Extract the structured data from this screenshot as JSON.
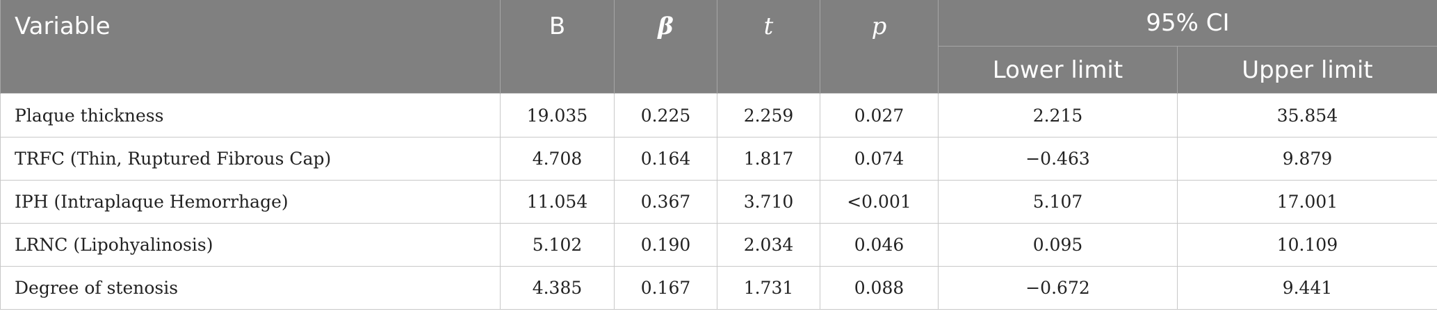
{
  "header": {
    "variable": "Variable",
    "b": "B",
    "beta": "β",
    "t": "t",
    "p": "p",
    "ci": "95% CI",
    "lower": "Lower limit",
    "upper": "Upper limit"
  },
  "rows": [
    {
      "variable": "Plaque thickness",
      "b": "19.035",
      "beta": "0.225",
      "t": "2.259",
      "p": "0.027",
      "lower": "2.215",
      "upper": "35.854"
    },
    {
      "variable": "TRFC (Thin, Ruptured Fibrous Cap)",
      "b": "4.708",
      "beta": "0.164",
      "t": "1.817",
      "p": "0.074",
      "lower": "−0.463",
      "upper": "9.879"
    },
    {
      "variable": "IPH (Intraplaque Hemorrhage)",
      "b": "11.054",
      "beta": "0.367",
      "t": "3.710",
      "p": "<0.001",
      "lower": "5.107",
      "upper": "17.001"
    },
    {
      "variable": "LRNC (Lipohyalinosis)",
      "b": "5.102",
      "beta": "0.190",
      "t": "2.034",
      "p": "0.046",
      "lower": "0.095",
      "upper": "10.109"
    },
    {
      "variable": "Degree of stenosis",
      "b": "4.385",
      "beta": "0.167",
      "t": "1.731",
      "p": "0.088",
      "lower": "−0.672",
      "upper": "9.441"
    }
  ]
}
